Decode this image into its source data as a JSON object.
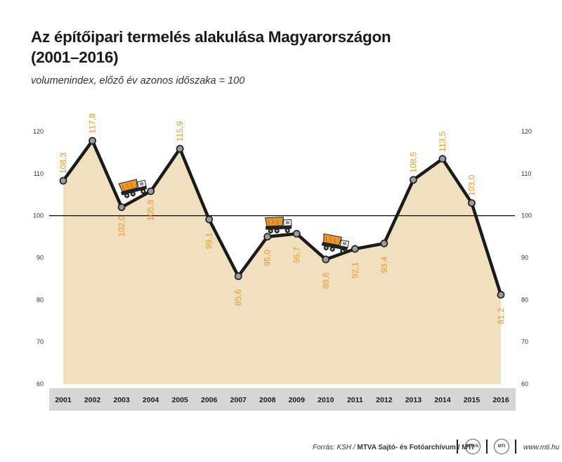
{
  "title_line1": "Az építőipari termelés alakulása Magyarországon",
  "title_line2": "(2001–2016)",
  "subtitle": "volumenindex, előző év azonos időszaka = 100",
  "footer": {
    "source_prefix": "Forrás: KSH /",
    "source_bold": "MTVA Sajtó- és Fotóarchívum / MTI",
    "logo1": "MTVA",
    "logo2": "MTI",
    "website": "www.mti.hu"
  },
  "colors": {
    "area": "#f0e0c0",
    "line": "#1a1a1a",
    "label": "#e8962e",
    "marker": "#9a9a9a",
    "axis_band": "#d6d6d6",
    "truck": "#e8962e"
  },
  "icons": [
    "dump-truck-icon",
    "dump-truck-icon",
    "dump-truck-icon"
  ],
  "chart_data": {
    "type": "line",
    "categories": [
      "2001",
      "2002",
      "2003",
      "2004",
      "2005",
      "2006",
      "2007",
      "2008",
      "2009",
      "2010",
      "2011",
      "2012",
      "2013",
      "2014",
      "2015",
      "2016"
    ],
    "values": [
      108.3,
      117.8,
      102.0,
      105.8,
      115.9,
      99.1,
      85.6,
      95.0,
      95.7,
      89.6,
      92.1,
      93.4,
      108.5,
      113.5,
      103.0,
      81.2
    ],
    "labels": [
      "108,3",
      "117,8",
      "102,0",
      "105,8",
      "115,9",
      "99,1",
      "85,6",
      "95,0",
      "95,7",
      "89,6",
      "92,1",
      "93,4",
      "108,5",
      "113,5",
      "103,0",
      "81,2"
    ],
    "ylim": [
      60,
      120
    ],
    "yticks": [
      60,
      70,
      80,
      90,
      100,
      110,
      120
    ],
    "reference_line": 100,
    "area_fill": true,
    "axis_ticks_both_sides": true
  }
}
